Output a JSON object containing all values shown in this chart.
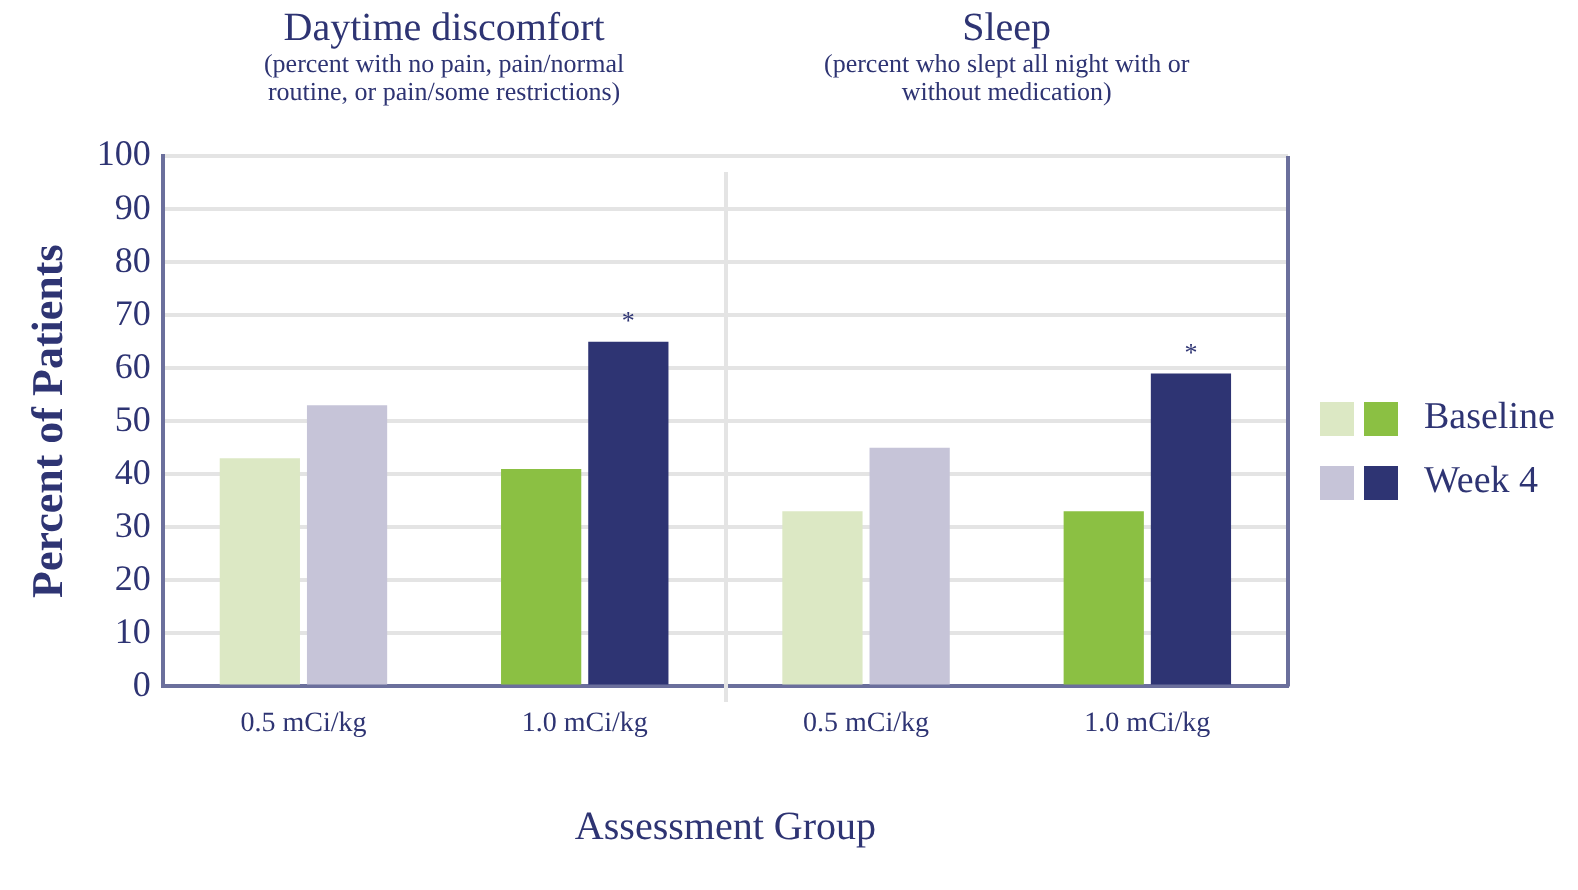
{
  "chart_data": {
    "type": "bar",
    "xlabel": "Assessment Group",
    "ylabel": "Percent of Patients",
    "categories": [
      "0.5 mCi/kg",
      "1.0 mCi/kg",
      "0.5 mCi/kg",
      "1.0 mCi/kg"
    ],
    "series": [
      {
        "name": "Baseline",
        "colors": [
          "#dce8c4",
          "#8bc043",
          "#dce8c4",
          "#8bc043"
        ],
        "values": [
          43,
          41,
          33,
          33
        ]
      },
      {
        "name": "Week 4",
        "colors": [
          "#c6c4d8",
          "#2e3473",
          "#c6c4d8",
          "#2e3473"
        ],
        "values": [
          53,
          65,
          45,
          59
        ],
        "value_labels": [
          null,
          "*",
          null,
          "*"
        ]
      }
    ],
    "annotations": [
      "Daytime discomfort",
      "(percent with no pain, pain/normal routine, or pain/some restrictions)",
      "Sleep",
      "(percent who slept all night with or without medication)"
    ],
    "ylim": [
      0,
      100
    ],
    "yticks": [
      0,
      10,
      20,
      30,
      40,
      50,
      60,
      70,
      80,
      90,
      100
    ],
    "grid": "y",
    "legend": "right"
  }
}
